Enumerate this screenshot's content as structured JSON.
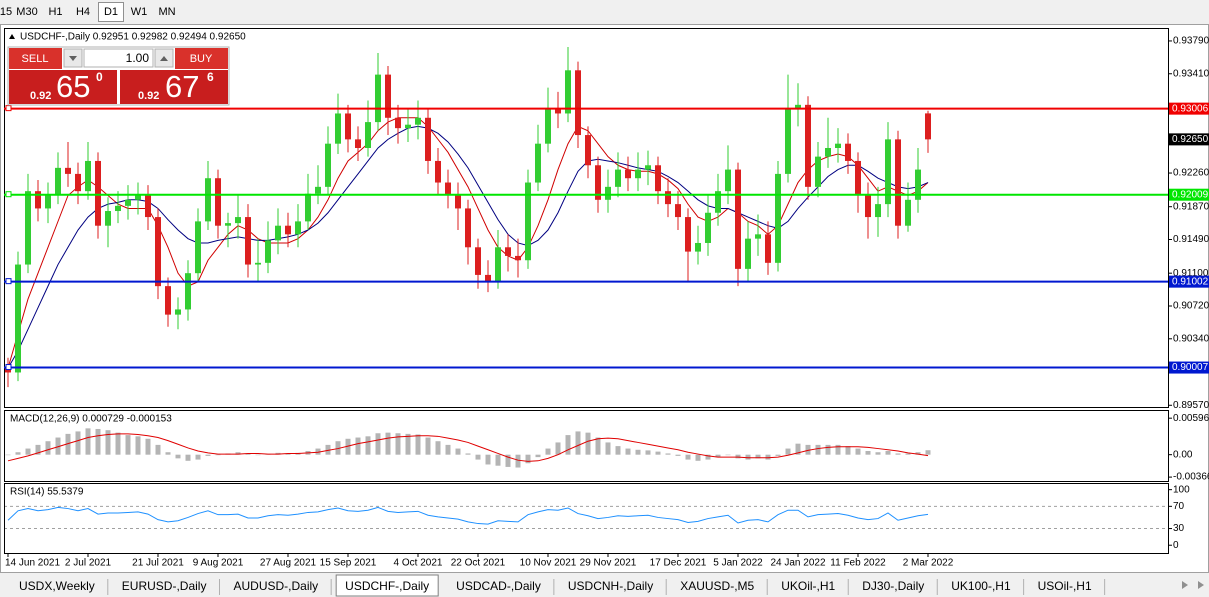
{
  "toolbar": {
    "items": [
      "15",
      "M30",
      "H1",
      "H4",
      "D1",
      "W1",
      "MN"
    ],
    "active": 4
  },
  "trade_panel": {
    "sell": "SELL",
    "lot": "1.00",
    "buy": "BUY",
    "bid": {
      "prefix": "0.92",
      "big": "65",
      "sup": "0"
    },
    "ask": {
      "prefix": "0.92",
      "big": "67",
      "sup": "6"
    }
  },
  "tabs": {
    "items": [
      "USDX,Weekly",
      "EURUSD-,Daily",
      "AUDUSD-,Daily",
      "USDCHF-,Daily",
      "USDCAD-,Daily",
      "USDCNH-,Daily",
      "XAUUSD-,M5",
      "UKOil-,H1",
      "DJ30-,Daily",
      "UK100-,H1",
      "USOil-,H1"
    ],
    "active": 3
  },
  "chart_data": [
    {
      "type": "candlestick",
      "title": "USDCHF-,Daily  0.92951 0.92982 0.92494 0.92650",
      "categories": [
        "14 Jun 2021",
        null,
        null,
        null,
        null,
        null,
        null,
        null,
        "2 Jul 2021",
        null,
        null,
        null,
        null,
        null,
        null,
        "21 Jul 2021",
        null,
        null,
        null,
        null,
        null,
        "9 Aug 2021",
        null,
        null,
        null,
        null,
        null,
        null,
        "27 Aug 2021",
        null,
        null,
        null,
        null,
        null,
        "15 Sep 2021",
        null,
        null,
        null,
        null,
        null,
        null,
        "4 Oct 2021",
        null,
        null,
        null,
        null,
        null,
        "22 Oct 2021",
        null,
        null,
        null,
        null,
        null,
        null,
        "10 Nov 2021",
        null,
        null,
        null,
        null,
        null,
        "29 Nov 2021",
        null,
        null,
        null,
        null,
        null,
        null,
        "17 Dec 2021",
        null,
        null,
        null,
        null,
        null,
        "5 Jan 2022",
        null,
        null,
        null,
        null,
        null,
        "24 Jan 2022",
        null,
        null,
        null,
        null,
        null,
        "11 Feb 2022",
        null,
        null,
        null,
        null,
        null,
        null,
        "2 Mar 2022"
      ],
      "open": [
        0.9,
        0.8995,
        0.912,
        0.9205,
        0.9185,
        0.92,
        0.9232,
        0.9225,
        0.9205,
        0.924,
        0.9165,
        0.9182,
        0.9188,
        0.9195,
        0.92,
        0.9175,
        0.9095,
        0.9062,
        0.9068,
        0.911,
        0.917,
        0.922,
        0.9165,
        0.9168,
        0.9175,
        0.912,
        0.9122,
        0.9148,
        0.9165,
        0.9155,
        0.917,
        0.9202,
        0.921,
        0.926,
        0.9295,
        0.9265,
        0.9255,
        0.9285,
        0.934,
        0.929,
        0.9278,
        0.9282,
        0.929,
        0.924,
        0.9215,
        0.92,
        0.9185,
        0.914,
        0.9108,
        0.91,
        0.914,
        0.913,
        0.9125,
        0.9215,
        0.926,
        0.93,
        0.9295,
        0.9345,
        0.927,
        0.9235,
        0.9195,
        0.921,
        0.923,
        0.922,
        0.923,
        0.9235,
        0.9205,
        0.919,
        0.9175,
        0.9135,
        0.9145,
        0.918,
        0.9205,
        0.923,
        0.9115,
        0.915,
        0.9155,
        0.9122,
        0.9225,
        0.93,
        0.9305,
        0.921,
        0.9245,
        0.9255,
        0.926,
        0.924,
        0.92,
        0.9175,
        0.919,
        0.9265,
        0.9165,
        0.9195,
        0.92951
      ],
      "high": [
        0.9012,
        0.9135,
        0.9225,
        0.9218,
        0.9215,
        0.925,
        0.9262,
        0.9238,
        0.9262,
        0.925,
        0.9198,
        0.9205,
        0.9212,
        0.9215,
        0.9212,
        0.9185,
        0.9105,
        0.9082,
        0.9125,
        0.9185,
        0.924,
        0.923,
        0.918,
        0.92,
        0.919,
        0.915,
        0.917,
        0.9185,
        0.918,
        0.919,
        0.9225,
        0.9235,
        0.928,
        0.9318,
        0.9305,
        0.928,
        0.931,
        0.9365,
        0.935,
        0.9305,
        0.93,
        0.931,
        0.93,
        0.9255,
        0.923,
        0.9215,
        0.9195,
        0.915,
        0.9125,
        0.916,
        0.9155,
        0.915,
        0.923,
        0.9282,
        0.9325,
        0.932,
        0.9372,
        0.9355,
        0.928,
        0.9245,
        0.923,
        0.925,
        0.9245,
        0.925,
        0.9252,
        0.9245,
        0.922,
        0.9205,
        0.9185,
        0.9165,
        0.92,
        0.9225,
        0.9258,
        0.9238,
        0.917,
        0.9178,
        0.917,
        0.924,
        0.934,
        0.933,
        0.9315,
        0.9262,
        0.929,
        0.9278,
        0.9272,
        0.925,
        0.9215,
        0.921,
        0.9285,
        0.9275,
        0.9215,
        0.9255,
        0.92982
      ],
      "low": [
        0.8978,
        0.8985,
        0.911,
        0.917,
        0.9168,
        0.919,
        0.921,
        0.919,
        0.9195,
        0.915,
        0.914,
        0.9168,
        0.9172,
        0.9178,
        0.916,
        0.908,
        0.9048,
        0.9045,
        0.9055,
        0.91,
        0.916,
        0.915,
        0.914,
        0.915,
        0.9105,
        0.91,
        0.911,
        0.9132,
        0.914,
        0.914,
        0.916,
        0.919,
        0.92,
        0.9248,
        0.925,
        0.924,
        0.9245,
        0.9275,
        0.927,
        0.926,
        0.9262,
        0.9265,
        0.9225,
        0.92,
        0.9185,
        0.916,
        0.912,
        0.9092,
        0.9088,
        0.9092,
        0.9112,
        0.9105,
        0.9115,
        0.9205,
        0.925,
        0.9278,
        0.9285,
        0.9255,
        0.922,
        0.918,
        0.918,
        0.9198,
        0.9205,
        0.9205,
        0.9212,
        0.919,
        0.9175,
        0.916,
        0.91,
        0.912,
        0.913,
        0.9165,
        0.919,
        0.9095,
        0.91,
        0.913,
        0.9108,
        0.9112,
        0.9215,
        0.928,
        0.9195,
        0.9198,
        0.9232,
        0.9238,
        0.9225,
        0.918,
        0.915,
        0.9152,
        0.9175,
        0.915,
        0.9158,
        0.918,
        0.92494
      ],
      "close": [
        0.8995,
        0.912,
        0.9205,
        0.9185,
        0.92,
        0.9232,
        0.9225,
        0.9205,
        0.924,
        0.9165,
        0.9182,
        0.9188,
        0.9195,
        0.92,
        0.9175,
        0.9095,
        0.9062,
        0.9068,
        0.911,
        0.917,
        0.922,
        0.9165,
        0.9168,
        0.9175,
        0.912,
        0.9122,
        0.9148,
        0.9165,
        0.9155,
        0.917,
        0.9202,
        0.921,
        0.926,
        0.9295,
        0.9265,
        0.9255,
        0.9285,
        0.934,
        0.929,
        0.9278,
        0.9282,
        0.929,
        0.924,
        0.9215,
        0.92,
        0.9185,
        0.914,
        0.9108,
        0.91,
        0.914,
        0.913,
        0.9125,
        0.9215,
        0.926,
        0.93,
        0.9295,
        0.9345,
        0.927,
        0.9235,
        0.9195,
        0.921,
        0.923,
        0.922,
        0.923,
        0.9235,
        0.9205,
        0.919,
        0.9175,
        0.9135,
        0.9145,
        0.918,
        0.9205,
        0.923,
        0.9115,
        0.915,
        0.9155,
        0.9122,
        0.9225,
        0.93,
        0.9305,
        0.921,
        0.9245,
        0.9255,
        0.926,
        0.924,
        0.92,
        0.9175,
        0.919,
        0.9265,
        0.9165,
        0.9195,
        0.923,
        0.9265
      ],
      "colors": {
        "up": "#32cd32",
        "down": "#dc1f1f"
      },
      "moving_averages": [
        {
          "color": "#d00000",
          "values": [
            0.9,
            0.904,
            0.908,
            0.911,
            0.914,
            0.917,
            0.92,
            0.921,
            0.9218,
            0.921,
            0.92,
            0.919,
            0.9185,
            0.9185,
            0.9185,
            0.9165,
            0.914,
            0.911,
            0.9095,
            0.91,
            0.9125,
            0.914,
            0.9155,
            0.9165,
            0.916,
            0.915,
            0.9145,
            0.9145,
            0.9145,
            0.915,
            0.916,
            0.9175,
            0.9195,
            0.922,
            0.924,
            0.925,
            0.926,
            0.9275,
            0.9285,
            0.929,
            0.929,
            0.929,
            0.928,
            0.9265,
            0.925,
            0.923,
            0.921,
            0.9185,
            0.916,
            0.914,
            0.913,
            0.9125,
            0.914,
            0.9165,
            0.9195,
            0.923,
            0.926,
            0.928,
            0.9275,
            0.926,
            0.9245,
            0.9235,
            0.923,
            0.9228,
            0.9228,
            0.9225,
            0.9218,
            0.9208,
            0.919,
            0.9175,
            0.917,
            0.9175,
            0.9185,
            0.918,
            0.917,
            0.9165,
            0.9155,
            0.9165,
            0.919,
            0.9215,
            0.923,
            0.924,
            0.9245,
            0.9248,
            0.9245,
            0.9235,
            0.922,
            0.9205,
            0.921,
            0.9205,
            0.92,
            0.9205,
            0.9215
          ]
        },
        {
          "color": "#000080",
          "values": [
            0.9,
            0.902,
            0.9045,
            0.907,
            0.9095,
            0.912,
            0.914,
            0.916,
            0.9175,
            0.9185,
            0.919,
            0.9192,
            0.9195,
            0.9195,
            0.9193,
            0.9185,
            0.9172,
            0.916,
            0.915,
            0.9145,
            0.9145,
            0.9148,
            0.915,
            0.9152,
            0.915,
            0.9148,
            0.9148,
            0.915,
            0.9152,
            0.9155,
            0.916,
            0.9168,
            0.918,
            0.9195,
            0.921,
            0.9225,
            0.924,
            0.9255,
            0.9265,
            0.9272,
            0.9278,
            0.928,
            0.9278,
            0.9272,
            0.9262,
            0.9248,
            0.9232,
            0.9212,
            0.9192,
            0.9172,
            0.9155,
            0.9145,
            0.9142,
            0.9148,
            0.916,
            0.918,
            0.9205,
            0.9228,
            0.924,
            0.9242,
            0.924,
            0.9238,
            0.9235,
            0.9232,
            0.923,
            0.9228,
            0.9222,
            0.9215,
            0.9205,
            0.9195,
            0.9188,
            0.9185,
            0.9185,
            0.918,
            0.9175,
            0.917,
            0.9165,
            0.9162,
            0.917,
            0.9185,
            0.9198,
            0.921,
            0.9222,
            0.923,
            0.9235,
            0.9235,
            0.9228,
            0.922,
            0.9215,
            0.921,
            0.9208,
            0.921,
            0.9215
          ]
        }
      ],
      "levels": [
        {
          "value": 0.93006,
          "color": "#f00000"
        },
        {
          "value": 0.92009,
          "color": "#00e600"
        },
        {
          "value": 0.91002,
          "color": "#0018d0"
        },
        {
          "value": 0.90007,
          "color": "#0018d0"
        }
      ],
      "current_price": {
        "value": 0.9265,
        "label": "0.92650"
      },
      "ylim": [
        0.8955,
        0.9394
      ],
      "yticks": [
        {
          "value": 0.9379,
          "label": "0.93790"
        },
        {
          "value": 0.9341,
          "label": "0.93410"
        },
        {
          "value": 0.9226,
          "label": "0.92260"
        },
        {
          "value": 0.9187,
          "label": "0.91870"
        },
        {
          "value": 0.9149,
          "label": "0.91490"
        },
        {
          "value": 0.911,
          "label": "0.91100"
        },
        {
          "value": 0.9072,
          "label": "0.90720"
        },
        {
          "value": 0.9034,
          "label": "0.90340"
        },
        {
          "value": 0.8957,
          "label": "0.89570"
        }
      ]
    },
    {
      "type": "macd",
      "title": "MACD(12,26,9) 0.000729 -0.000153",
      "histogram": [
        0.0,
        0.0004,
        0.001,
        0.0016,
        0.0022,
        0.0028,
        0.0034,
        0.0038,
        0.0043,
        0.0042,
        0.004,
        0.0036,
        0.0032,
        0.003,
        0.0026,
        0.0016,
        0.0004,
        -0.0006,
        -0.001,
        -0.0008,
        -0.0002,
        0.0,
        0.0002,
        0.0004,
        0.0002,
        0.0,
        0.0001,
        0.0003,
        0.0002,
        0.0003,
        0.0006,
        0.001,
        0.0016,
        0.0022,
        0.0026,
        0.0028,
        0.003,
        0.0035,
        0.0036,
        0.0035,
        0.0034,
        0.0033,
        0.0028,
        0.0022,
        0.0016,
        0.001,
        0.0002,
        -0.0008,
        -0.0016,
        -0.0018,
        -0.002,
        -0.0021,
        -0.0014,
        -0.0004,
        0.001,
        0.002,
        0.0032,
        0.0038,
        0.0036,
        0.0028,
        0.002,
        0.0014,
        0.001,
        0.0008,
        0.0007,
        0.0005,
        0.0002,
        -0.0002,
        -0.0008,
        -0.001,
        -0.0008,
        -0.0004,
        0.0,
        -0.0006,
        -0.0008,
        -0.0006,
        -0.0008,
        -0.0002,
        0.001,
        0.0018,
        0.0016,
        0.0016,
        0.0016,
        0.0016,
        0.0014,
        0.001,
        0.0006,
        0.0004,
        0.0006,
        0.0002,
        0.0002,
        0.0004,
        0.000729
      ],
      "histogram_color": "#b4b4b4",
      "signal": [
        -0.001,
        -0.0006,
        -0.0002,
        0.0003,
        0.0008,
        0.0013,
        0.0018,
        0.0023,
        0.0028,
        0.0031,
        0.0033,
        0.0034,
        0.0034,
        0.0033,
        0.0031,
        0.0028,
        0.0023,
        0.0017,
        0.0011,
        0.0006,
        0.0003,
        0.0001,
        0.0001,
        0.0001,
        0.0002,
        0.0002,
        0.0001,
        0.0001,
        0.0002,
        0.0002,
        0.0003,
        0.0004,
        0.0007,
        0.001,
        0.0014,
        0.0018,
        0.0021,
        0.0024,
        0.0027,
        0.0029,
        0.003,
        0.0031,
        0.0031,
        0.003,
        0.0027,
        0.0024,
        0.002,
        0.0014,
        0.0008,
        0.0002,
        -0.0004,
        -0.0009,
        -0.0011,
        -0.001,
        -0.0006,
        0.0,
        0.0008,
        0.0015,
        0.0022,
        0.0026,
        0.0027,
        0.0026,
        0.0023,
        0.002,
        0.0017,
        0.0014,
        0.0011,
        0.0008,
        0.0004,
        0.0001,
        -0.0002,
        -0.0004,
        -0.0004,
        -0.0004,
        -0.0005,
        -0.0005,
        -0.0005,
        -0.0004,
        -0.0001,
        0.0003,
        0.0007,
        0.001,
        0.0012,
        0.0013,
        0.0013,
        0.0013,
        0.0012,
        0.001,
        0.0008,
        0.0006,
        0.0003,
        0.0001,
        -0.000153
      ],
      "signal_color": "#e00000",
      "ylim": [
        -0.0043,
        0.0073
      ],
      "yticks": [
        0.005963,
        {
          "value": 0,
          "label": "0.00"
        },
        -0.003664
      ]
    },
    {
      "type": "line",
      "title": "RSI(14) 55.5379",
      "values": [
        45,
        62,
        66,
        62,
        64,
        68,
        66,
        62,
        66,
        56,
        58,
        58,
        59,
        60,
        56,
        46,
        42,
        44,
        50,
        57,
        62,
        55,
        55,
        56,
        49,
        49,
        53,
        55,
        54,
        56,
        59,
        60,
        64,
        67,
        62,
        61,
        63,
        68,
        61,
        59,
        60,
        61,
        54,
        51,
        49,
        47,
        42,
        39,
        38,
        44,
        43,
        42,
        55,
        60,
        64,
        63,
        67,
        57,
        53,
        48,
        50,
        53,
        52,
        53,
        54,
        50,
        48,
        46,
        41,
        43,
        48,
        51,
        54,
        40,
        45,
        46,
        42,
        55,
        63,
        63,
        51,
        55,
        56,
        57,
        54,
        49,
        46,
        48,
        58,
        45,
        49,
        53,
        55.5379
      ],
      "color": "#1e90ff",
      "levels": [
        70,
        30
      ],
      "ylim": [
        -14,
        112
      ],
      "yticks": [
        100,
        70,
        30,
        0
      ]
    }
  ]
}
